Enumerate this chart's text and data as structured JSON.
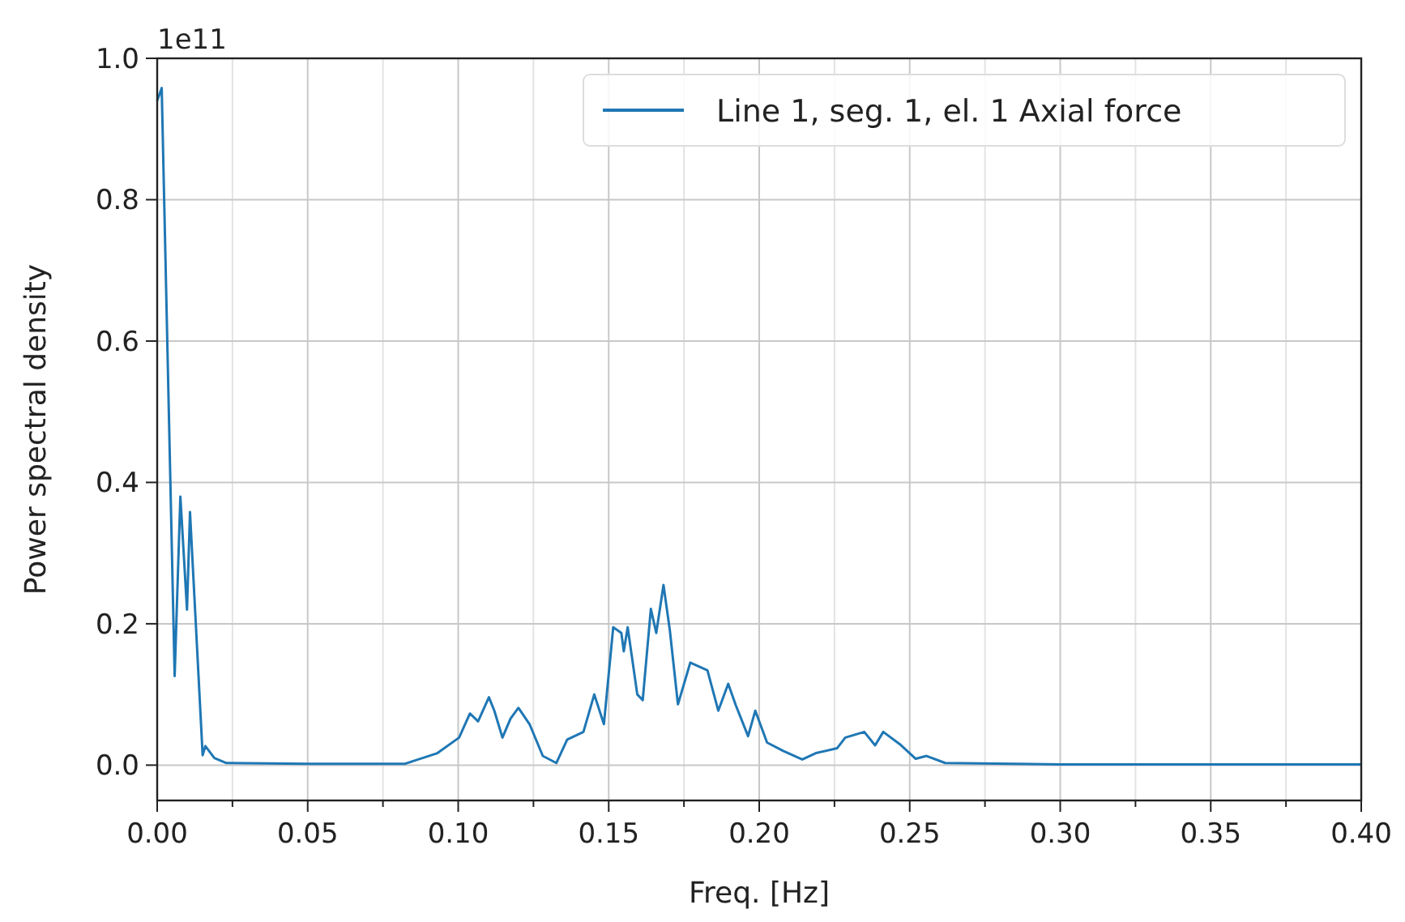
{
  "chart_data": {
    "type": "line",
    "xlabel": "Freq. [Hz]",
    "ylabel": "Power spectral density",
    "annotations": [
      "1e11"
    ],
    "xlim": [
      0,
      0.4
    ],
    "ylim": [
      -0.05,
      1.0
    ],
    "xticks": [
      {
        "value": 0,
        "label": "0.00"
      },
      {
        "value": 0.025,
        "label": null
      },
      {
        "value": 0.05,
        "label": "0.05"
      },
      {
        "value": 0.075,
        "label": null
      },
      {
        "value": 0.1,
        "label": "0.10"
      },
      {
        "value": 0.125,
        "label": null
      },
      {
        "value": 0.15,
        "label": "0.15"
      },
      {
        "value": 0.175,
        "label": null
      },
      {
        "value": 0.2,
        "label": "0.20"
      },
      {
        "value": 0.225,
        "label": null
      },
      {
        "value": 0.25,
        "label": "0.25"
      },
      {
        "value": 0.275,
        "label": null
      },
      {
        "value": 0.3,
        "label": "0.30"
      },
      {
        "value": 0.325,
        "label": null
      },
      {
        "value": 0.35,
        "label": "0.35"
      },
      {
        "value": 0.375,
        "label": null
      },
      {
        "value": 0.4,
        "label": "0.40"
      }
    ],
    "yticks": [
      {
        "value": 0,
        "label": "0.0"
      },
      0.2,
      0.4,
      0.6,
      0.8,
      {
        "value": 1,
        "label": "1.0"
      }
    ],
    "grid": true,
    "legend": "top right",
    "line_style": "solid",
    "marker": "none",
    "series": [
      {
        "name": "Line 1, seg. 1, el. 1 Axial force",
        "color": "#1f77b4",
        "x": [
          0,
          0.0015,
          0.0058,
          0.0077,
          0.0099,
          0.0109,
          0.0151,
          0.016,
          0.019,
          0.023,
          0.05,
          0.0824,
          0.0931,
          0.1003,
          0.1039,
          0.1066,
          0.1102,
          0.112,
          0.1147,
          0.1174,
          0.12,
          0.1237,
          0.1281,
          0.1326,
          0.1362,
          0.1416,
          0.1452,
          0.1484,
          0.1515,
          0.1542,
          0.155,
          0.1563,
          0.1595,
          0.1613,
          0.164,
          0.1658,
          0.1682,
          0.1703,
          0.173,
          0.1771,
          0.1828,
          0.1864,
          0.1897,
          0.1922,
          0.1963,
          0.1987,
          0.2026,
          0.208,
          0.2143,
          0.2188,
          0.2259,
          0.2286,
          0.2349,
          0.2385,
          0.2412,
          0.2466,
          0.252,
          0.2556,
          0.2618,
          0.3,
          0.35,
          0.4
        ],
        "values": [
          0.94,
          0.958,
          0.126,
          0.38,
          0.22,
          0.358,
          0.014,
          0.027,
          0.01,
          0.003,
          0.002,
          0.002,
          0.017,
          0.039,
          0.073,
          0.062,
          0.096,
          0.077,
          0.039,
          0.066,
          0.081,
          0.058,
          0.013,
          0.003,
          0.036,
          0.047,
          0.1,
          0.058,
          0.195,
          0.187,
          0.161,
          0.195,
          0.1,
          0.092,
          0.221,
          0.187,
          0.255,
          0.191,
          0.086,
          0.145,
          0.134,
          0.077,
          0.115,
          0.085,
          0.041,
          0.077,
          0.032,
          0.02,
          0.008,
          0.017,
          0.024,
          0.039,
          0.047,
          0.028,
          0.047,
          0.03,
          0.009,
          0.013,
          0.003,
          0.001,
          0.001,
          0.001
        ]
      }
    ]
  }
}
